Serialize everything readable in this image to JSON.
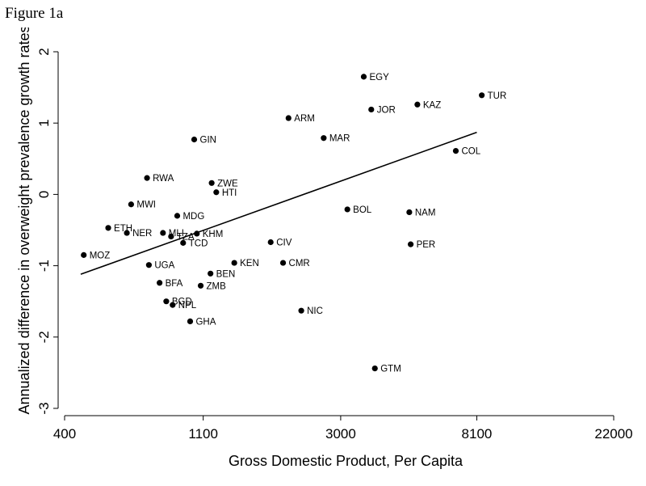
{
  "caption": "Figure 1a",
  "chart_data": {
    "type": "scatter",
    "xlabel": "Gross Domestic Product, Per Capita",
    "ylabel": "Annualized difference in overweight prevalence growth rates",
    "x_scale": "log",
    "x_ticks": [
      400,
      1100,
      3000,
      8100,
      22000
    ],
    "x_tick_labels": [
      "400",
      "1100",
      "3000",
      "8100",
      "22000"
    ],
    "y_ticks": [
      -3,
      -2,
      -1,
      0,
      1,
      2
    ],
    "y_tick_labels": [
      "-3",
      "-2",
      "-1",
      "0",
      "1",
      "2"
    ],
    "xlim": [
      400,
      22000
    ],
    "ylim": [
      -3,
      2
    ],
    "grid": false,
    "points": [
      {
        "label": "EGY",
        "x": 3550,
        "y": 1.65
      },
      {
        "label": "TUR",
        "x": 8400,
        "y": 1.39
      },
      {
        "label": "KAZ",
        "x": 5250,
        "y": 1.26
      },
      {
        "label": "JOR",
        "x": 3750,
        "y": 1.19
      },
      {
        "label": "ARM",
        "x": 2050,
        "y": 1.07
      },
      {
        "label": "MAR",
        "x": 2650,
        "y": 0.79
      },
      {
        "label": "GIN",
        "x": 1030,
        "y": 0.77
      },
      {
        "label": "COL",
        "x": 6950,
        "y": 0.61
      },
      {
        "label": "RWA",
        "x": 730,
        "y": 0.23
      },
      {
        "label": "ZWE",
        "x": 1170,
        "y": 0.16
      },
      {
        "label": "HTI",
        "x": 1210,
        "y": 0.03
      },
      {
        "label": "MWI",
        "x": 650,
        "y": -0.14
      },
      {
        "label": "BOL",
        "x": 3150,
        "y": -0.21
      },
      {
        "label": "NAM",
        "x": 4950,
        "y": -0.25
      },
      {
        "label": "MDG",
        "x": 910,
        "y": -0.3
      },
      {
        "label": "ETH",
        "x": 550,
        "y": -0.47
      },
      {
        "label": "NER",
        "x": 630,
        "y": -0.54
      },
      {
        "label": "MLI",
        "x": 820,
        "y": -0.54
      },
      {
        "label": "KHM",
        "x": 1050,
        "y": -0.55
      },
      {
        "label": "TZA",
        "x": 870,
        "y": -0.59
      },
      {
        "label": "TCD",
        "x": 950,
        "y": -0.68
      },
      {
        "label": "CIV",
        "x": 1800,
        "y": -0.67
      },
      {
        "label": "PER",
        "x": 5000,
        "y": -0.7
      },
      {
        "label": "MOZ",
        "x": 460,
        "y": -0.85
      },
      {
        "label": "UGA",
        "x": 740,
        "y": -0.99
      },
      {
        "label": "KEN",
        "x": 1380,
        "y": -0.96
      },
      {
        "label": "CMR",
        "x": 1970,
        "y": -0.96
      },
      {
        "label": "BEN",
        "x": 1160,
        "y": -1.11
      },
      {
        "label": "BFA",
        "x": 800,
        "y": -1.24
      },
      {
        "label": "ZMB",
        "x": 1080,
        "y": -1.28
      },
      {
        "label": "BGD",
        "x": 840,
        "y": -1.5
      },
      {
        "label": "NPL",
        "x": 880,
        "y": -1.55
      },
      {
        "label": "NIC",
        "x": 2250,
        "y": -1.63
      },
      {
        "label": "GHA",
        "x": 1000,
        "y": -1.78
      },
      {
        "label": "GTM",
        "x": 3850,
        "y": -2.44
      }
    ],
    "fit_line": {
      "x": [
        450,
        8100
      ],
      "y": [
        -1.12,
        0.87
      ]
    }
  }
}
